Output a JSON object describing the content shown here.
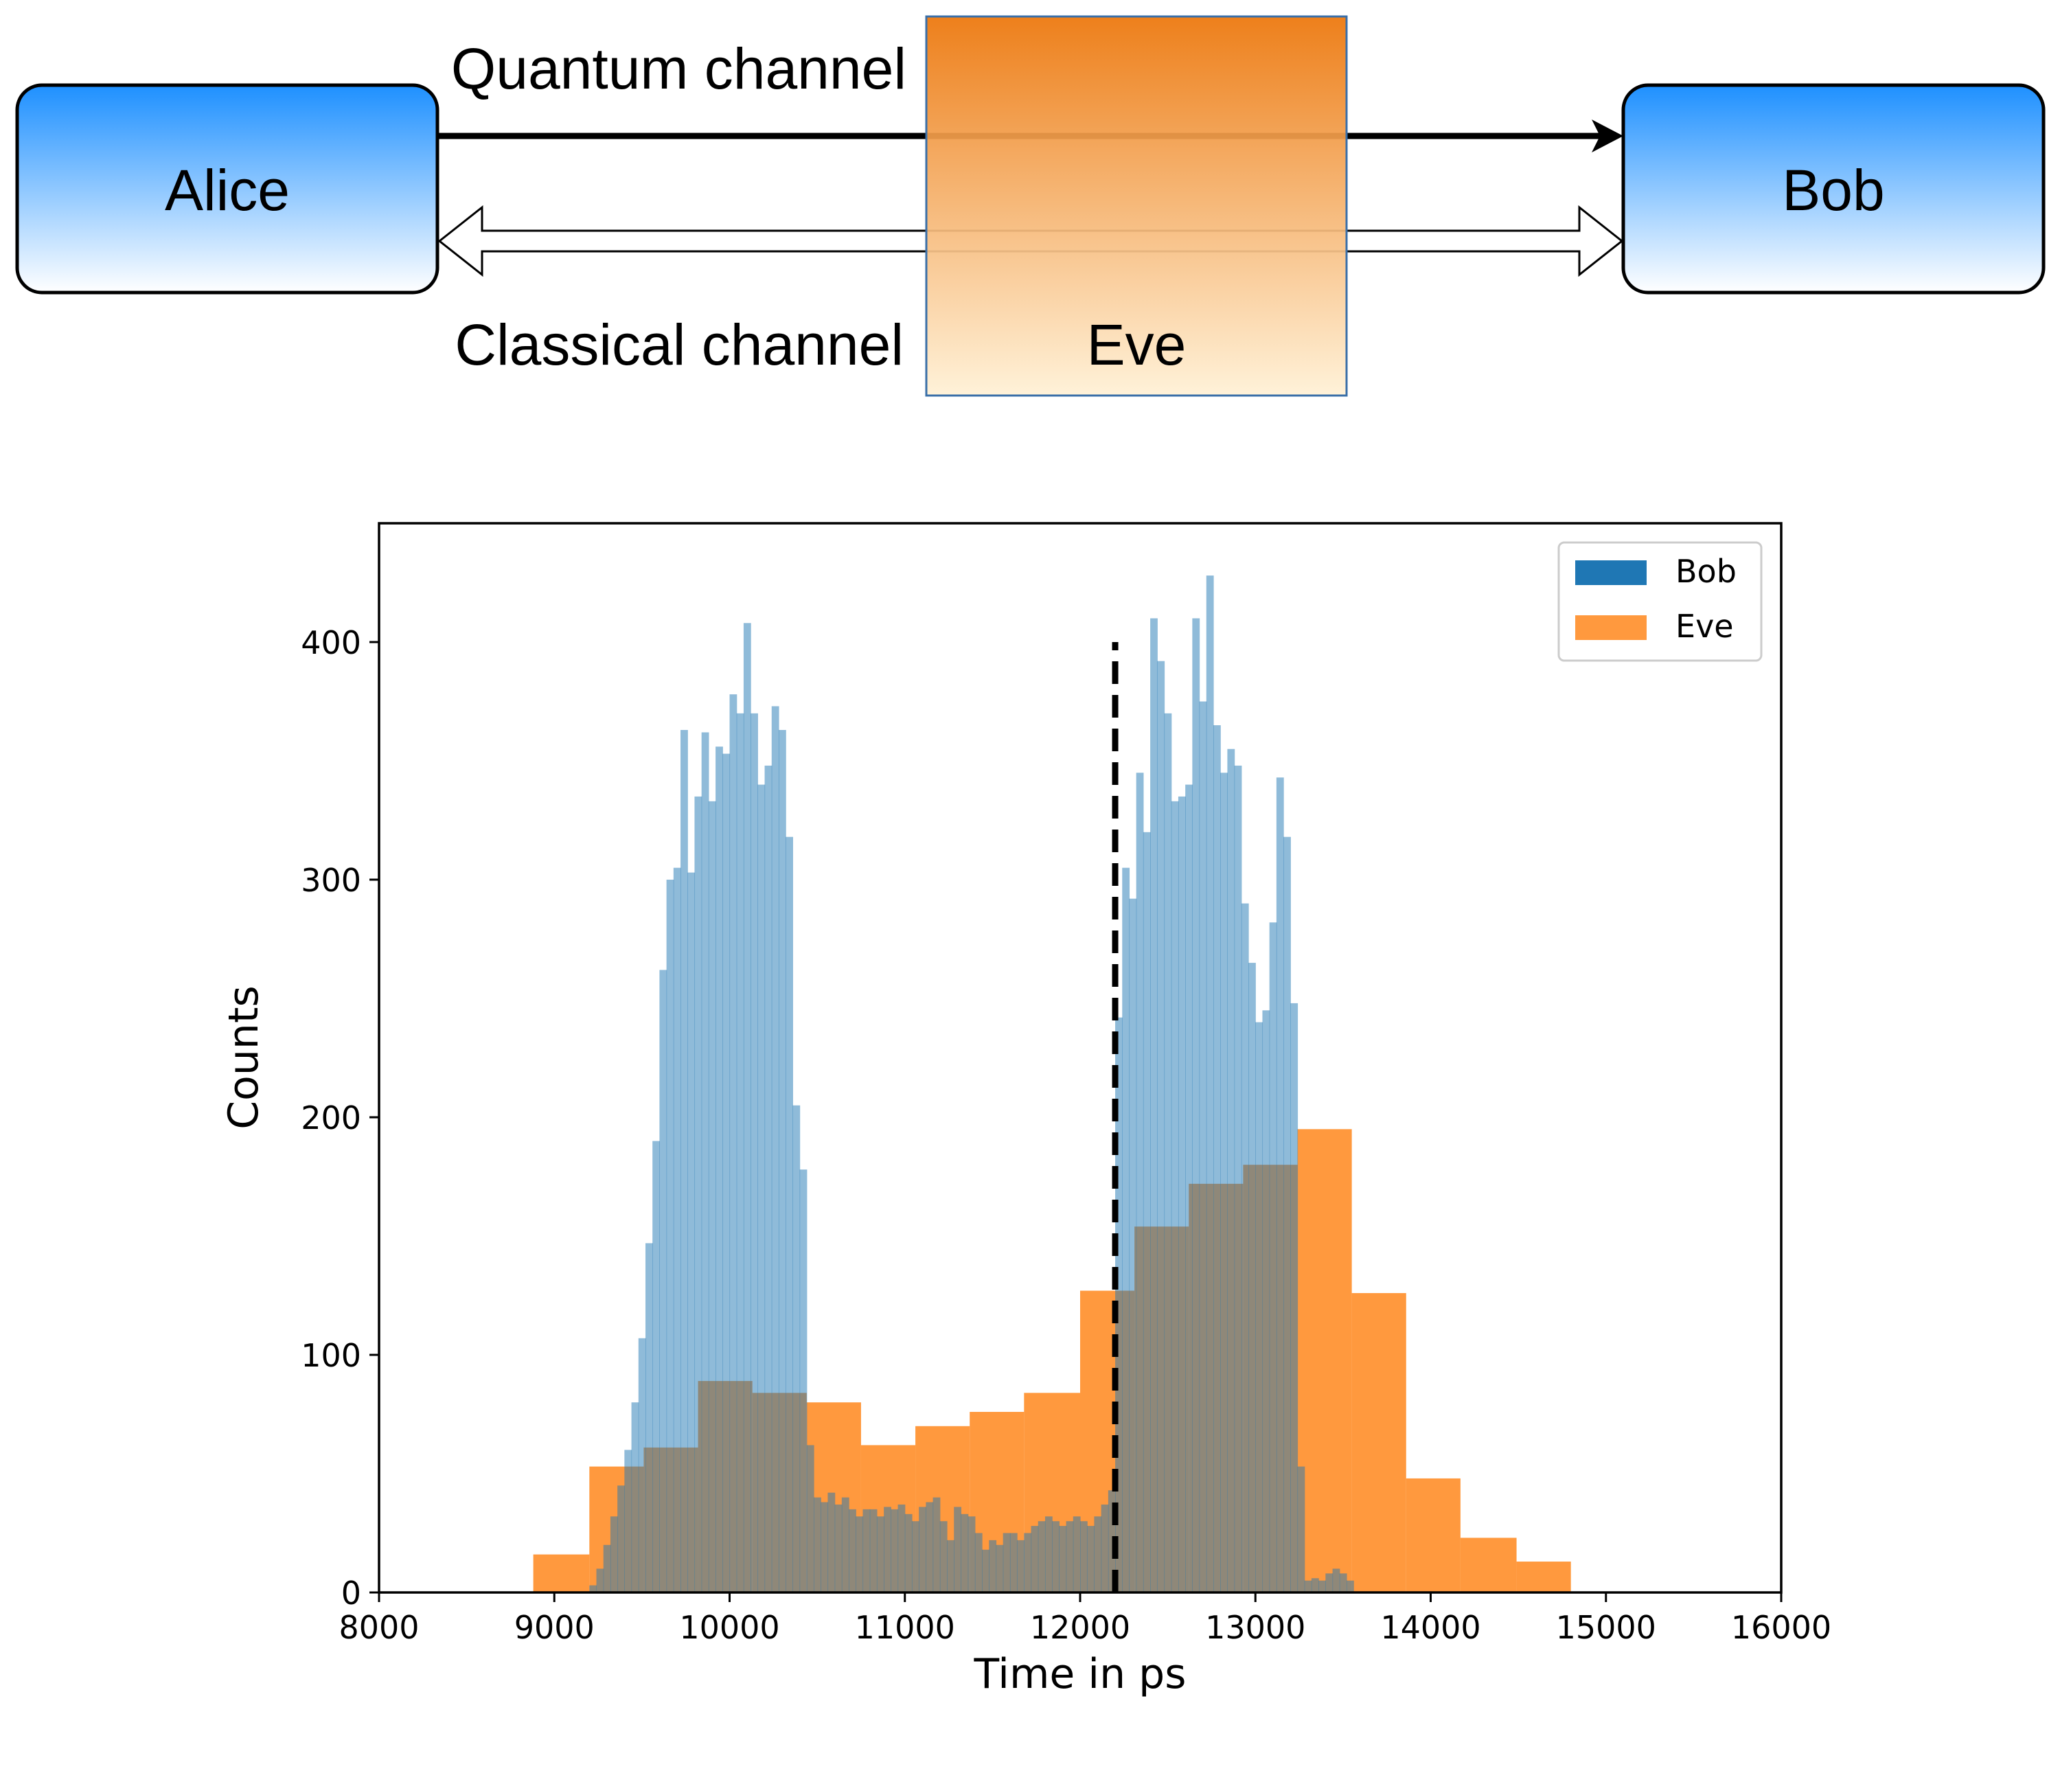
{
  "diagram": {
    "alice_label": "Alice",
    "bob_label": "Bob",
    "eve_label": "Eve",
    "quantum_label": "Quantum channel",
    "classical_label": "Classical channel",
    "colors": {
      "party_top": "#1e90ff",
      "party_bottom": "#ffffff",
      "eve_top": "#ec760a",
      "eve_bottom": "#fff1d6",
      "eve_border": "#3a6fa8"
    }
  },
  "chart_data": {
    "type": "histogram",
    "title": "",
    "xlabel": "Time in ps",
    "ylabel": "Counts",
    "xlim": [
      8000,
      16000
    ],
    "ylim": [
      0,
      450
    ],
    "x_ticks": [
      8000,
      9000,
      10000,
      11000,
      12000,
      13000,
      14000,
      15000,
      16000
    ],
    "y_ticks": [
      0,
      100,
      200,
      300,
      400
    ],
    "legend": {
      "placement": "upper-right",
      "entries": [
        "Bob",
        "Eve"
      ]
    },
    "threshold_line": {
      "x": 12200,
      "y_top": 400,
      "style": "dashed",
      "color": "#000000"
    },
    "series": [
      {
        "name": "Bob",
        "color": "#1f77b4",
        "bin_start": 9200,
        "bin_width": 40,
        "values": [
          3,
          10,
          20,
          32,
          45,
          60,
          80,
          107,
          147,
          190,
          262,
          300,
          305,
          363,
          303,
          335,
          362,
          333,
          356,
          353,
          378,
          370,
          408,
          370,
          340,
          348,
          373,
          363,
          318,
          205,
          178,
          62,
          40,
          38,
          42,
          37,
          40,
          35,
          32,
          35,
          35,
          32,
          36,
          35,
          37,
          33,
          30,
          36,
          38,
          40,
          30,
          22,
          36,
          33,
          32,
          25,
          18,
          22,
          20,
          25,
          25,
          22,
          25,
          28,
          30,
          32,
          30,
          28,
          30,
          32,
          30,
          28,
          32,
          37,
          43,
          242,
          305,
          292,
          345,
          320,
          410,
          392,
          370,
          333,
          335,
          340,
          410,
          375,
          428,
          365,
          345,
          355,
          348,
          290,
          265,
          240,
          245,
          282,
          343,
          318,
          248,
          53,
          5,
          6,
          5,
          8,
          10,
          8,
          5
        ]
      },
      {
        "name": "Eve",
        "color": "#ff7f0e",
        "bin_edges": [
          8880,
          9200,
          9510,
          9820,
          10130,
          10440,
          10750,
          11060,
          11370,
          11680,
          12000,
          12310,
          12620,
          12930,
          13240,
          13550,
          13860,
          14170,
          14490,
          14800
        ],
        "values": [
          16,
          53,
          61,
          89,
          84,
          80,
          62,
          70,
          76,
          84,
          127,
          154,
          172,
          180,
          195,
          126,
          48,
          23,
          13
        ]
      }
    ]
  }
}
